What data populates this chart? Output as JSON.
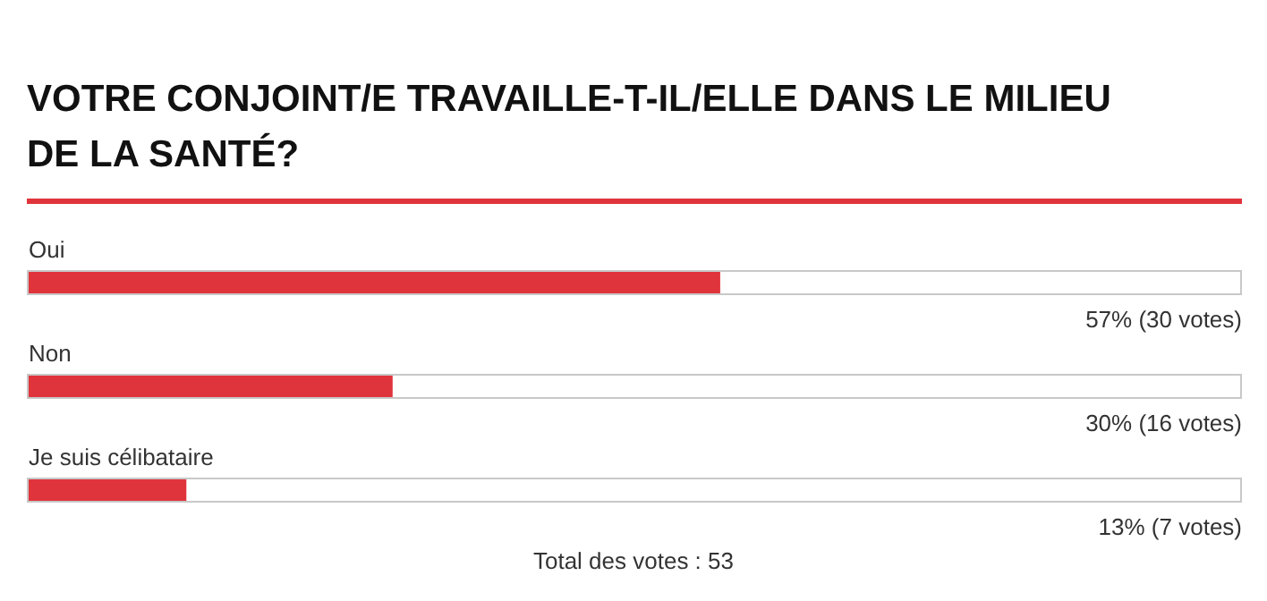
{
  "chart_data": {
    "type": "bar",
    "orientation": "horizontal",
    "title": "VOTRE CONJOINT/E TRAVAILLE-T-IL/ELLE DANS LE MILIEU DE LA SANTÉ?",
    "categories": [
      "Oui",
      "Non",
      "Je suis célibataire"
    ],
    "values": [
      57,
      30,
      13
    ],
    "color": "#e0343c",
    "value_labels": [
      "57% (30 votes)",
      "30% (16 votes)",
      "13% (7 votes)"
    ],
    "xlim": [
      0,
      100
    ],
    "annotations": [
      "Total des votes : 53"
    ]
  }
}
